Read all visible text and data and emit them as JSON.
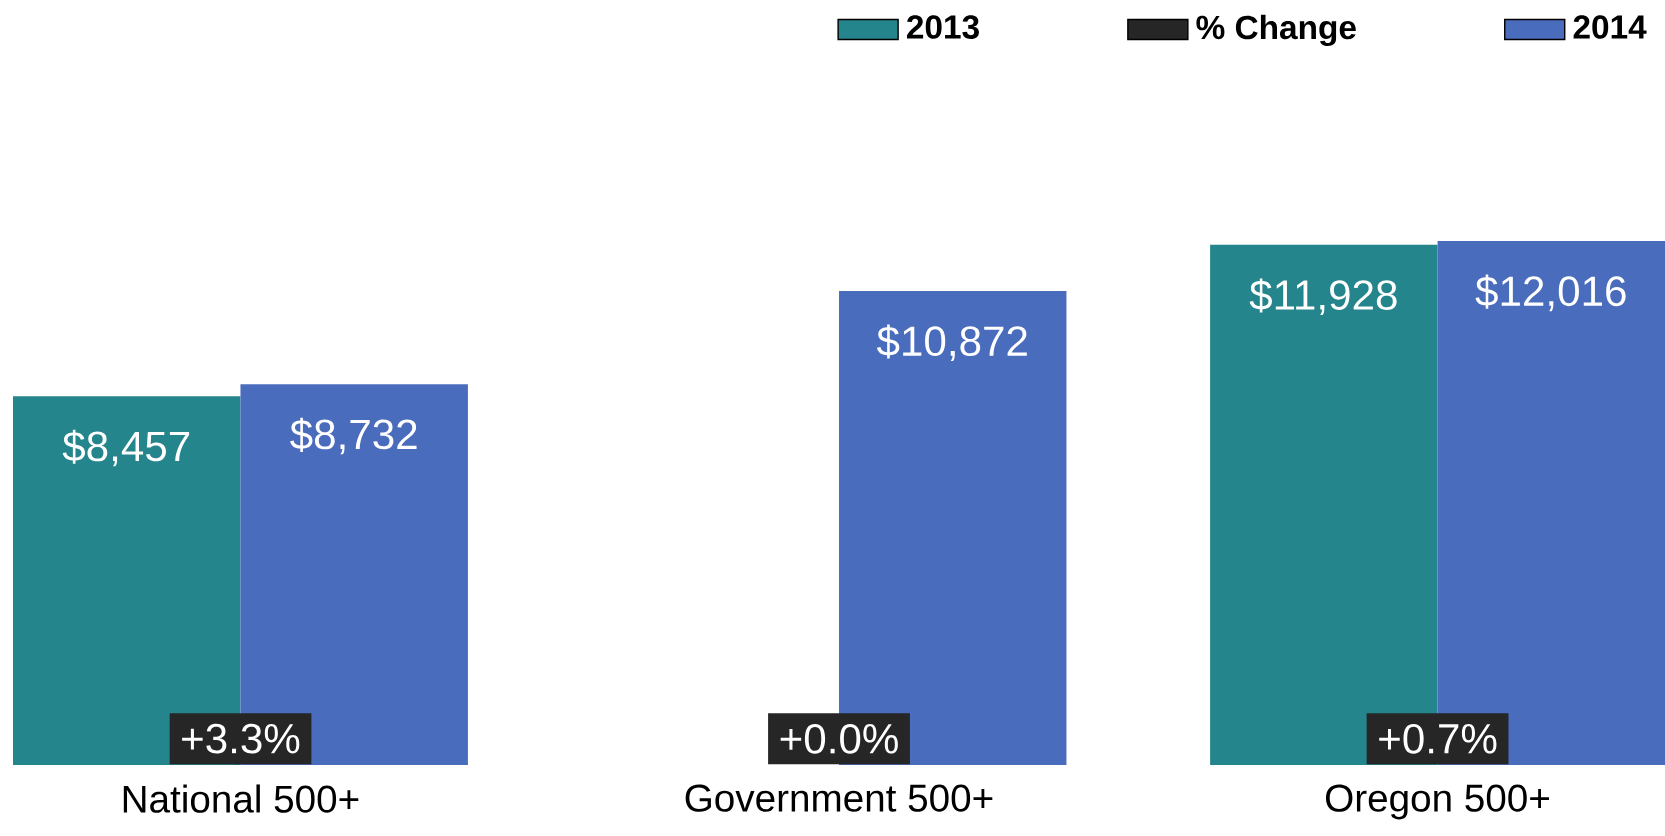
{
  "chart_data": {
    "type": "bar",
    "categories": [
      "National 500+",
      "Government 500+",
      "Oregon 500+"
    ],
    "series": [
      {
        "name": "2013",
        "color": "#24858c",
        "values": [
          8457,
          null,
          11928
        ],
        "value_labels": [
          "$8,457",
          null,
          "$11,928"
        ]
      },
      {
        "name": "% Change",
        "color": "#262626",
        "values": [
          3.3,
          0.0,
          0.7
        ],
        "value_labels": [
          "+3.3%",
          "+0.0%",
          "+0.7%"
        ]
      },
      {
        "name": "2014",
        "color": "#4a6cbc",
        "values": [
          8732,
          10872,
          12016
        ],
        "value_labels": [
          "$8,732",
          "$10,872",
          "$12,016"
        ]
      }
    ],
    "legend": "top right"
  }
}
